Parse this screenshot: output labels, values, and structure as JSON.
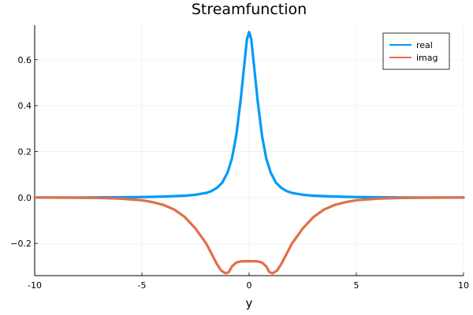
{
  "chart_data": {
    "type": "line",
    "title": "Streamfunction",
    "xlabel": "y",
    "ylabel": "",
    "xlim": [
      -10,
      10
    ],
    "ylim": [
      -0.34,
      0.75
    ],
    "xticks": [
      -10,
      -5,
      0,
      5,
      10
    ],
    "xtick_labels": [
      "-10",
      "-5",
      "0",
      "5",
      "10"
    ],
    "yticks": [
      -0.2,
      0.0,
      0.2,
      0.4,
      0.6
    ],
    "ytick_labels": [
      "−0.2",
      "0.0",
      "0.2",
      "0.4",
      "0.6"
    ],
    "grid": true,
    "legend_position": "top-right",
    "series": [
      {
        "name": "real",
        "color": "#009AFA",
        "points": [
          [
            -10,
            0.0
          ],
          [
            -8,
            0.0
          ],
          [
            -6,
            0.001
          ],
          [
            -5,
            0.002
          ],
          [
            -4,
            0.004
          ],
          [
            -3,
            0.008
          ],
          [
            -2.5,
            0.012
          ],
          [
            -2,
            0.02
          ],
          [
            -1.75,
            0.028
          ],
          [
            -1.5,
            0.042
          ],
          [
            -1.25,
            0.065
          ],
          [
            -1.0,
            0.11
          ],
          [
            -0.8,
            0.17
          ],
          [
            -0.6,
            0.27
          ],
          [
            -0.4,
            0.42
          ],
          [
            -0.3,
            0.51
          ],
          [
            -0.2,
            0.6
          ],
          [
            -0.1,
            0.69
          ],
          [
            0,
            0.72
          ],
          [
            0.1,
            0.69
          ],
          [
            0.2,
            0.6
          ],
          [
            0.3,
            0.51
          ],
          [
            0.4,
            0.42
          ],
          [
            0.6,
            0.27
          ],
          [
            0.8,
            0.17
          ],
          [
            1.0,
            0.11
          ],
          [
            1.25,
            0.065
          ],
          [
            1.5,
            0.042
          ],
          [
            1.75,
            0.028
          ],
          [
            2,
            0.02
          ],
          [
            2.5,
            0.012
          ],
          [
            3,
            0.008
          ],
          [
            4,
            0.004
          ],
          [
            5,
            0.002
          ],
          [
            6,
            0.001
          ],
          [
            8,
            0.0
          ],
          [
            10,
            0.0
          ]
        ]
      },
      {
        "name": "imag",
        "color": "#E26F46",
        "points": [
          [
            -10,
            0.0
          ],
          [
            -8,
            -0.001
          ],
          [
            -7,
            -0.002
          ],
          [
            -6,
            -0.005
          ],
          [
            -5,
            -0.012
          ],
          [
            -4.5,
            -0.02
          ],
          [
            -4,
            -0.032
          ],
          [
            -3.5,
            -0.052
          ],
          [
            -3,
            -0.085
          ],
          [
            -2.5,
            -0.135
          ],
          [
            -2,
            -0.2
          ],
          [
            -1.75,
            -0.245
          ],
          [
            -1.5,
            -0.29
          ],
          [
            -1.3,
            -0.318
          ],
          [
            -1.1,
            -0.33
          ],
          [
            -0.95,
            -0.325
          ],
          [
            -0.8,
            -0.3
          ],
          [
            -0.6,
            -0.283
          ],
          [
            -0.4,
            -0.278
          ],
          [
            0,
            -0.277
          ],
          [
            0.4,
            -0.278
          ],
          [
            0.6,
            -0.283
          ],
          [
            0.8,
            -0.3
          ],
          [
            0.95,
            -0.325
          ],
          [
            1.1,
            -0.33
          ],
          [
            1.3,
            -0.318
          ],
          [
            1.5,
            -0.29
          ],
          [
            1.75,
            -0.245
          ],
          [
            2,
            -0.2
          ],
          [
            2.5,
            -0.135
          ],
          [
            3,
            -0.085
          ],
          [
            3.5,
            -0.052
          ],
          [
            4,
            -0.032
          ],
          [
            4.5,
            -0.02
          ],
          [
            5,
            -0.012
          ],
          [
            6,
            -0.005
          ],
          [
            7,
            -0.002
          ],
          [
            8,
            -0.001
          ],
          [
            10,
            0.0
          ]
        ]
      }
    ]
  }
}
